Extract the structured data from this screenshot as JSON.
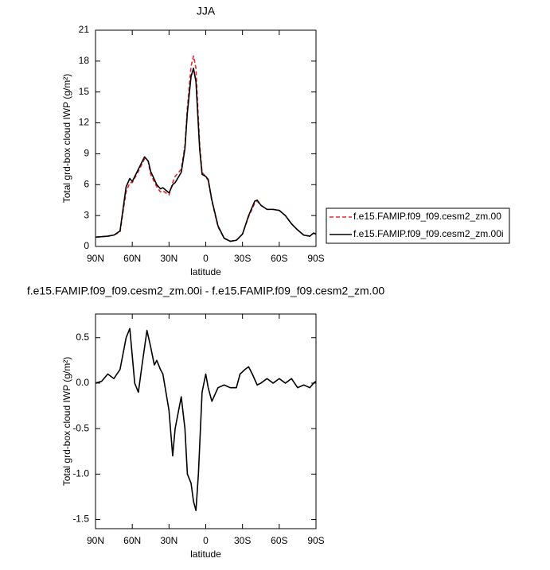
{
  "chart_data": [
    {
      "type": "line",
      "title": "JJA",
      "xlabel": "latitude",
      "ylabel": "Total grd-box cloud IWP (g/m²)",
      "x": [
        90,
        85,
        80,
        75,
        70,
        65,
        62,
        60,
        55,
        50,
        47,
        45,
        40,
        37,
        35,
        30,
        27,
        25,
        20,
        17,
        15,
        12,
        10,
        8,
        5,
        3,
        0,
        -2,
        -5,
        -10,
        -15,
        -20,
        -25,
        -30,
        -35,
        -40,
        -42,
        -45,
        -50,
        -55,
        -60,
        -65,
        -70,
        -75,
        -80,
        -85,
        -88,
        -90
      ],
      "series": [
        {
          "name": "f.e15.FAMIP.f09_f09.cesm2_zm.00",
          "color": "#e8262b",
          "linestyle": "dashed",
          "values": [
            0.9,
            0.95,
            1.0,
            1.1,
            1.4,
            5.3,
            6.2,
            6.2,
            7.3,
            8.5,
            8.3,
            7.0,
            5.8,
            5.3,
            5.4,
            5.0,
            6.2,
            6.8,
            7.5,
            9.8,
            13.5,
            17.5,
            18.5,
            17.3,
            10,
            7.2,
            6.8,
            6.4,
            4.4,
            1.9,
            0.8,
            0.5,
            0.6,
            1.2,
            2.9,
            4.2,
            4.4,
            4.0,
            3.6,
            3.6,
            3.5,
            3.0,
            2.2,
            1.6,
            1.1,
            1.0,
            1.3,
            1.2
          ]
        },
        {
          "name": "f.e15.FAMIP.f09_f09.cesm2_zm.00i",
          "color": "#000000",
          "linestyle": "solid",
          "values": [
            0.9,
            0.95,
            1.0,
            1.1,
            1.5,
            5.8,
            6.6,
            6.3,
            7.5,
            8.7,
            8.3,
            7.3,
            6.0,
            5.6,
            5.7,
            5.2,
            6.0,
            6.2,
            7.2,
            9.5,
            13,
            16.5,
            17.3,
            16,
            9.5,
            7.0,
            6.8,
            6.5,
            4.5,
            2.0,
            0.8,
            0.5,
            0.6,
            1.2,
            3.0,
            4.4,
            4.5,
            4.0,
            3.6,
            3.6,
            3.5,
            3.0,
            2.2,
            1.6,
            1.1,
            1.0,
            1.3,
            1.2
          ]
        }
      ],
      "xlim": [
        90,
        -90
      ],
      "xticks": [
        {
          "value": 90,
          "label": "90N"
        },
        {
          "value": 60,
          "label": "60N"
        },
        {
          "value": 30,
          "label": "30N"
        },
        0,
        {
          "value": -30,
          "label": "30S"
        },
        {
          "value": -60,
          "label": "60S"
        },
        {
          "value": -90,
          "label": "90S"
        }
      ],
      "ylim": [
        0,
        21
      ],
      "yticks": [
        0,
        3,
        6,
        9,
        12,
        15,
        18,
        21
      ],
      "legend": "right"
    },
    {
      "type": "line",
      "title": "f.e15.FAMIP.f09_f09.cesm2_zm.00i - f.e15.FAMIP.f09_f09.cesm2_zm.00",
      "xlabel": "latitude",
      "ylabel": "Total grd-box cloud IWP (g/m²)",
      "x": [
        90,
        85,
        80,
        75,
        70,
        65,
        62,
        60,
        58,
        55,
        52,
        48,
        45,
        42,
        40,
        37,
        35,
        30,
        27,
        25,
        20,
        17,
        15,
        12,
        10,
        8,
        6,
        3,
        0,
        -2,
        -5,
        -10,
        -15,
        -20,
        -25,
        -28,
        -32,
        -35,
        -38,
        -42,
        -45,
        -50,
        -55,
        -60,
        -65,
        -70,
        -75,
        -80,
        -85,
        -88,
        -90
      ],
      "series": [
        {
          "color": "#000000",
          "linestyle": "solid",
          "values": [
            0.0,
            0.02,
            0.1,
            0.05,
            0.15,
            0.5,
            0.6,
            0.3,
            0.0,
            -0.1,
            0.2,
            0.58,
            0.4,
            0.2,
            0.25,
            0.15,
            0.1,
            -0.3,
            -0.8,
            -0.5,
            -0.15,
            -0.5,
            -1.0,
            -1.1,
            -1.3,
            -1.4,
            -1.0,
            -0.1,
            0.1,
            -0.05,
            -0.2,
            -0.05,
            -0.02,
            -0.05,
            -0.05,
            0.1,
            0.15,
            0.18,
            0.1,
            -0.02,
            0.0,
            0.05,
            0.0,
            0.05,
            0.0,
            0.05,
            -0.05,
            -0.02,
            -0.05,
            0.0,
            0.02
          ]
        }
      ],
      "xlim": [
        90,
        -90
      ],
      "xticks": [
        {
          "value": 90,
          "label": "90N"
        },
        {
          "value": 60,
          "label": "60N"
        },
        {
          "value": 30,
          "label": "30N"
        },
        0,
        {
          "value": -30,
          "label": "30S"
        },
        {
          "value": -60,
          "label": "60S"
        },
        {
          "value": -90,
          "label": "90S"
        }
      ],
      "ylim": [
        -1.6,
        0.76
      ],
      "yticks": [
        -1.5,
        {
          "value": -1,
          "label": "-1.0"
        },
        -0.5,
        {
          "value": 0,
          "label": "0.0"
        },
        0.5
      ]
    }
  ]
}
